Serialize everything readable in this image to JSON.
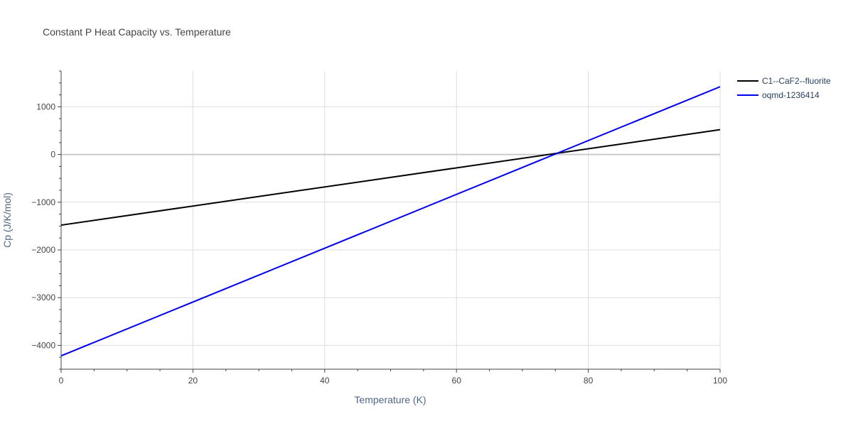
{
  "chart_data": {
    "type": "line",
    "title": "Constant P Heat Capacity vs. Temperature",
    "xlabel": "Temperature (K)",
    "ylabel": "Cp (J/K/mol)",
    "xlim": [
      0,
      100
    ],
    "ylim": [
      -4500,
      1750
    ],
    "x_ticks": [
      0,
      20,
      40,
      60,
      80,
      100
    ],
    "y_ticks": [
      -4000,
      -3000,
      -2000,
      -1000,
      0,
      1000
    ],
    "y_tick_labels": [
      "−4000",
      "−3000",
      "−2000",
      "−1000",
      "0",
      "1000"
    ],
    "grid": true,
    "legend_position": "top-right",
    "series": [
      {
        "name": "C1--CaF2--fluorite",
        "color": "#000000",
        "x": [
          0,
          100
        ],
        "y": [
          -1480,
          520
        ]
      },
      {
        "name": "oqmd-1236414",
        "color": "#0000ee",
        "x": [
          0,
          100
        ],
        "y": [
          -4220,
          1420
        ]
      }
    ]
  }
}
